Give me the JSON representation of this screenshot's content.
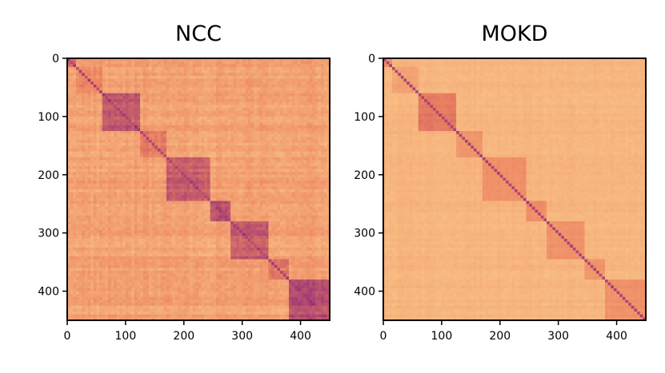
{
  "chart_data": [
    {
      "type": "heatmap",
      "title": "NCC",
      "matrix_size": 450,
      "x_ticks": [
        "0",
        "100",
        "200",
        "300",
        "400"
      ],
      "y_ticks": [
        "0",
        "100",
        "200",
        "300",
        "400"
      ],
      "x_tick_values": [
        0,
        100,
        200,
        300,
        400
      ],
      "y_tick_values": [
        0,
        100,
        200,
        300,
        400
      ],
      "xlim": [
        0,
        450
      ],
      "ylim": [
        0,
        450
      ],
      "grid": false,
      "colormap": "magma",
      "block_boundaries": [
        0,
        17,
        62,
        125,
        170,
        245,
        280,
        345,
        380,
        450
      ],
      "block_intensity": [
        0.62,
        0.45,
        0.72,
        0.55,
        0.7,
        0.78,
        0.7,
        0.55,
        0.78
      ],
      "background_level": 0.3,
      "noise_level": 0.12
    },
    {
      "type": "heatmap",
      "title": "MOKD",
      "matrix_size": 450,
      "x_ticks": [
        "0",
        "100",
        "200",
        "300",
        "400"
      ],
      "y_ticks": [
        "0",
        "100",
        "200",
        "300",
        "400"
      ],
      "x_tick_values": [
        0,
        100,
        200,
        300,
        400
      ],
      "y_tick_values": [
        0,
        100,
        200,
        300,
        400
      ],
      "xlim": [
        0,
        450
      ],
      "ylim": [
        0,
        450
      ],
      "grid": false,
      "colormap": "magma",
      "block_boundaries": [
        0,
        17,
        62,
        125,
        170,
        245,
        280,
        345,
        380,
        450
      ],
      "block_intensity": [
        0.4,
        0.3,
        0.55,
        0.38,
        0.4,
        0.42,
        0.4,
        0.38,
        0.4
      ],
      "background_level": 0.18,
      "noise_level": 0.05
    }
  ],
  "colors": {
    "low": "#fcd28f",
    "mid": "#ec8160",
    "high": "#8d2a7a",
    "axis": "#000000",
    "background": "#ffffff"
  }
}
